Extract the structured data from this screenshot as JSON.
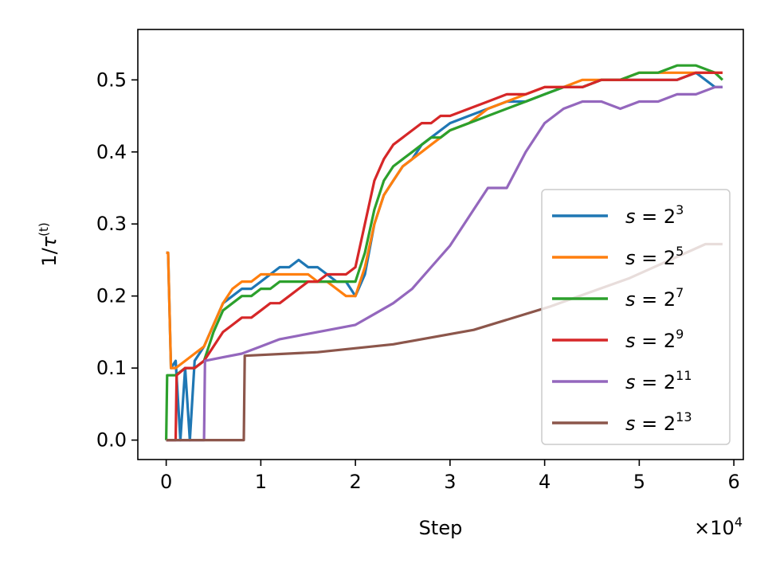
{
  "chart_data": {
    "type": "line",
    "xlabel": "Step",
    "ylabel_main": "1/",
    "ylabel_symbol": "τ",
    "ylabel_super": "(t)",
    "x_multiplier": {
      "base": "×10",
      "exponent": "4"
    },
    "xlim": [
      -0.3,
      6.1
    ],
    "ylim": [
      -0.027,
      0.57
    ],
    "x_ticks": [
      0,
      1,
      2,
      3,
      4,
      5,
      6
    ],
    "x_tick_labels": [
      "0",
      "1",
      "2",
      "3",
      "4",
      "5",
      "6"
    ],
    "y_ticks": [
      0.0,
      0.1,
      0.2,
      0.3,
      0.4,
      0.5
    ],
    "y_tick_labels": [
      "0.0",
      "0.1",
      "0.2",
      "0.3",
      "0.4",
      "0.5"
    ],
    "grid": false,
    "legend_position": "lower-right",
    "series": [
      {
        "name_prefix": "s = 2",
        "exponent": "3",
        "color": "#1f77b4",
        "x": [
          0.0,
          0.02,
          0.05,
          0.1,
          0.15,
          0.2,
          0.25,
          0.3,
          0.4,
          0.5,
          0.6,
          0.7,
          0.8,
          0.9,
          1.0,
          1.1,
          1.2,
          1.3,
          1.4,
          1.5,
          1.6,
          1.7,
          1.8,
          1.9,
          2.0,
          2.1,
          2.2,
          2.3,
          2.4,
          2.5,
          2.6,
          2.7,
          2.8,
          2.9,
          3.0,
          3.2,
          3.4,
          3.6,
          3.8,
          4.0,
          4.2,
          4.4,
          4.6,
          4.8,
          5.0,
          5.2,
          5.4,
          5.6,
          5.8,
          5.88
        ],
        "y": [
          0.26,
          0.26,
          0.1,
          0.11,
          0.0,
          0.1,
          0.0,
          0.11,
          0.13,
          0.16,
          0.19,
          0.2,
          0.21,
          0.21,
          0.22,
          0.23,
          0.24,
          0.24,
          0.25,
          0.24,
          0.24,
          0.23,
          0.22,
          0.22,
          0.2,
          0.23,
          0.3,
          0.34,
          0.36,
          0.38,
          0.39,
          0.41,
          0.42,
          0.43,
          0.44,
          0.45,
          0.46,
          0.47,
          0.47,
          0.48,
          0.49,
          0.49,
          0.5,
          0.5,
          0.5,
          0.5,
          0.5,
          0.51,
          0.49,
          0.49
        ]
      },
      {
        "name_prefix": "s = 2",
        "exponent": "5",
        "color": "#ff7f0e",
        "x": [
          0.0,
          0.02,
          0.05,
          0.1,
          0.2,
          0.3,
          0.4,
          0.5,
          0.6,
          0.7,
          0.8,
          0.9,
          1.0,
          1.1,
          1.2,
          1.3,
          1.4,
          1.5,
          1.6,
          1.7,
          1.8,
          1.9,
          2.0,
          2.1,
          2.2,
          2.3,
          2.4,
          2.5,
          2.6,
          2.7,
          2.8,
          2.9,
          3.0,
          3.2,
          3.4,
          3.6,
          3.8,
          4.0,
          4.2,
          4.4,
          4.6,
          4.8,
          5.0,
          5.2,
          5.4,
          5.6,
          5.8,
          5.88
        ],
        "y": [
          0.26,
          0.26,
          0.1,
          0.1,
          0.11,
          0.12,
          0.13,
          0.16,
          0.19,
          0.21,
          0.22,
          0.22,
          0.23,
          0.23,
          0.23,
          0.23,
          0.23,
          0.23,
          0.22,
          0.22,
          0.21,
          0.2,
          0.2,
          0.24,
          0.3,
          0.34,
          0.36,
          0.38,
          0.39,
          0.4,
          0.41,
          0.42,
          0.43,
          0.44,
          0.46,
          0.47,
          0.48,
          0.49,
          0.49,
          0.5,
          0.5,
          0.5,
          0.51,
          0.51,
          0.51,
          0.51,
          0.51,
          0.51
        ]
      },
      {
        "name_prefix": "s = 2",
        "exponent": "7",
        "color": "#2ca02c",
        "x": [
          0.0,
          0.01,
          0.05,
          0.1,
          0.2,
          0.3,
          0.4,
          0.5,
          0.6,
          0.7,
          0.8,
          0.9,
          1.0,
          1.1,
          1.2,
          1.3,
          1.4,
          1.5,
          1.6,
          1.7,
          1.8,
          1.9,
          2.0,
          2.1,
          2.2,
          2.3,
          2.4,
          2.5,
          2.6,
          2.7,
          2.8,
          2.9,
          3.0,
          3.2,
          3.4,
          3.6,
          3.8,
          4.0,
          4.2,
          4.4,
          4.6,
          4.8,
          5.0,
          5.2,
          5.4,
          5.6,
          5.8,
          5.88
        ],
        "y": [
          0.0,
          0.09,
          0.09,
          0.09,
          0.1,
          0.1,
          0.11,
          0.15,
          0.18,
          0.19,
          0.2,
          0.2,
          0.21,
          0.21,
          0.22,
          0.22,
          0.22,
          0.22,
          0.22,
          0.22,
          0.22,
          0.22,
          0.22,
          0.26,
          0.32,
          0.36,
          0.38,
          0.39,
          0.4,
          0.41,
          0.42,
          0.42,
          0.43,
          0.44,
          0.45,
          0.46,
          0.47,
          0.48,
          0.49,
          0.49,
          0.5,
          0.5,
          0.51,
          0.51,
          0.52,
          0.52,
          0.51,
          0.5
        ]
      },
      {
        "name_prefix": "s = 2",
        "exponent": "9",
        "color": "#d62728",
        "x": [
          0.0,
          0.1,
          0.11,
          0.2,
          0.3,
          0.4,
          0.5,
          0.6,
          0.7,
          0.8,
          0.9,
          1.0,
          1.1,
          1.2,
          1.3,
          1.4,
          1.5,
          1.6,
          1.7,
          1.8,
          1.9,
          2.0,
          2.1,
          2.2,
          2.3,
          2.4,
          2.5,
          2.6,
          2.7,
          2.8,
          2.9,
          3.0,
          3.2,
          3.4,
          3.6,
          3.8,
          4.0,
          4.2,
          4.4,
          4.6,
          4.8,
          5.0,
          5.2,
          5.4,
          5.6,
          5.8,
          5.88
        ],
        "y": [
          0.0,
          0.0,
          0.09,
          0.1,
          0.1,
          0.11,
          0.13,
          0.15,
          0.16,
          0.17,
          0.17,
          0.18,
          0.19,
          0.19,
          0.2,
          0.21,
          0.22,
          0.22,
          0.23,
          0.23,
          0.23,
          0.24,
          0.3,
          0.36,
          0.39,
          0.41,
          0.42,
          0.43,
          0.44,
          0.44,
          0.45,
          0.45,
          0.46,
          0.47,
          0.48,
          0.48,
          0.49,
          0.49,
          0.49,
          0.5,
          0.5,
          0.5,
          0.5,
          0.5,
          0.51,
          0.51,
          0.51
        ]
      },
      {
        "name_prefix": "s = 2",
        "exponent": "11",
        "color": "#9467bd",
        "x": [
          0.0,
          0.4,
          0.41,
          0.6,
          0.8,
          1.0,
          1.2,
          1.4,
          1.6,
          1.8,
          2.0,
          2.2,
          2.4,
          2.6,
          2.8,
          3.0,
          3.2,
          3.4,
          3.6,
          3.8,
          4.0,
          4.2,
          4.4,
          4.6,
          4.8,
          5.0,
          5.2,
          5.4,
          5.6,
          5.8,
          5.88
        ],
        "y": [
          0.0,
          0.0,
          0.11,
          0.115,
          0.12,
          0.13,
          0.14,
          0.145,
          0.15,
          0.155,
          0.16,
          0.175,
          0.19,
          0.21,
          0.24,
          0.27,
          0.31,
          0.35,
          0.35,
          0.4,
          0.44,
          0.46,
          0.47,
          0.47,
          0.46,
          0.47,
          0.47,
          0.48,
          0.48,
          0.49,
          0.49
        ]
      },
      {
        "name_prefix": "s = 2",
        "exponent": "13",
        "color": "#8c564b",
        "x": [
          0.0,
          0.82,
          0.83,
          1.6,
          2.4,
          3.25,
          4.05,
          4.9,
          5.7,
          5.88
        ],
        "y": [
          0.0,
          0.0,
          0.117,
          0.122,
          0.133,
          0.153,
          0.185,
          0.225,
          0.272,
          0.272
        ]
      }
    ]
  }
}
